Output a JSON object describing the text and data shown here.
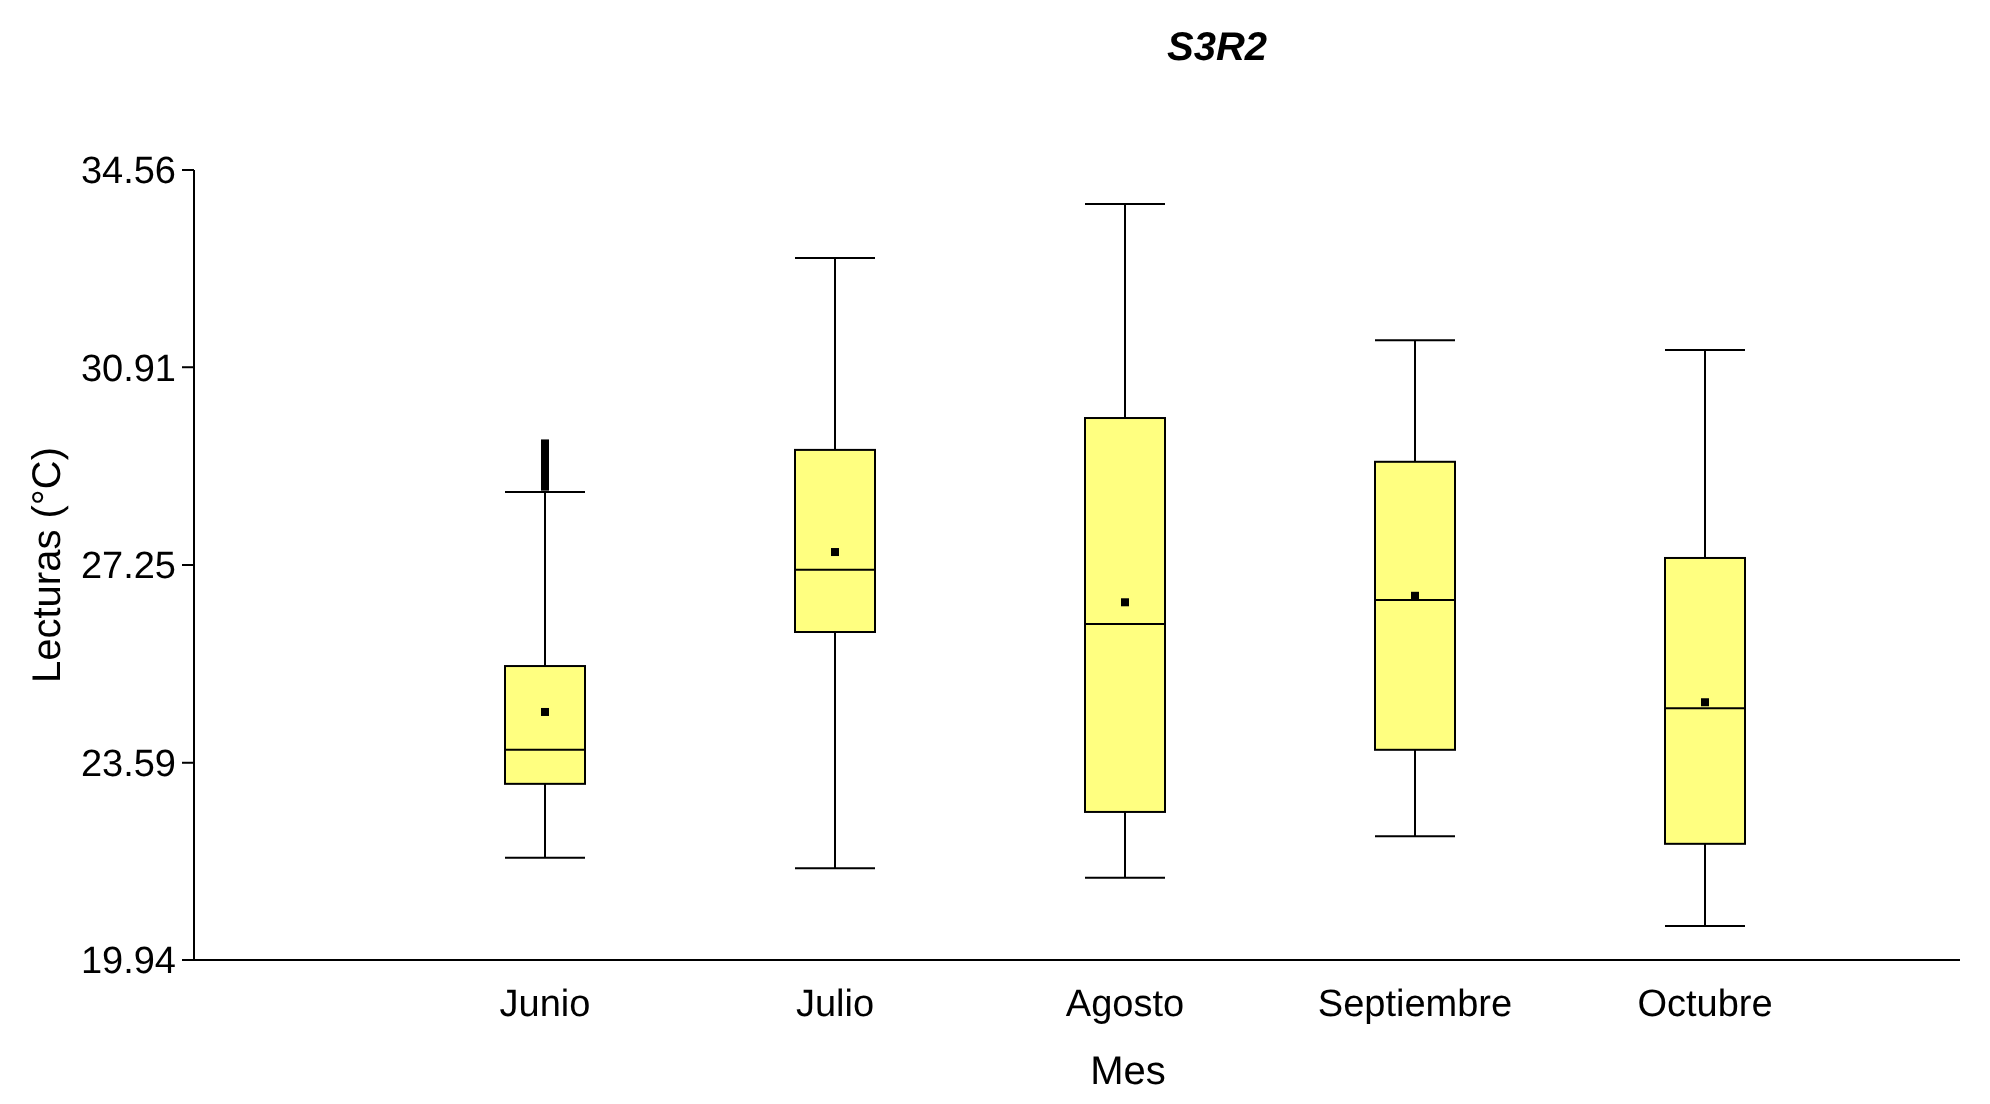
{
  "chart_data": {
    "type": "box",
    "title": "S3R2",
    "xlabel": "Mes",
    "ylabel": "Lecturas (°C)",
    "categories": [
      "Junio",
      "Julio",
      "Agosto",
      "Septiembre",
      "Octubre"
    ],
    "ylim": [
      19.94,
      34.56
    ],
    "yticks": [
      19.94,
      23.59,
      27.25,
      30.91,
      34.56
    ],
    "grid": false,
    "marker": "square",
    "series": [
      {
        "color": "#ffff80",
        "boxes": [
          {
            "low": 21.83,
            "q1": 23.2,
            "median": 23.83,
            "q3": 25.38,
            "high": 28.6,
            "mean": 24.53,
            "outliers": [
              28.7,
              28.8,
              28.9,
              29.0,
              29.1,
              29.2,
              29.3,
              29.4,
              29.5
            ]
          },
          {
            "low": 21.64,
            "q1": 26.01,
            "median": 27.16,
            "q3": 29.38,
            "high": 32.93,
            "mean": 27.49
          },
          {
            "low": 21.46,
            "q1": 22.68,
            "median": 26.16,
            "q3": 29.97,
            "high": 33.93,
            "mean": 26.56
          },
          {
            "low": 22.23,
            "q1": 23.83,
            "median": 26.6,
            "q3": 29.16,
            "high": 31.41,
            "mean": 26.68
          },
          {
            "low": 20.57,
            "q1": 22.09,
            "median": 24.6,
            "q3": 27.38,
            "high": 31.23,
            "mean": 24.71
          }
        ]
      }
    ]
  }
}
